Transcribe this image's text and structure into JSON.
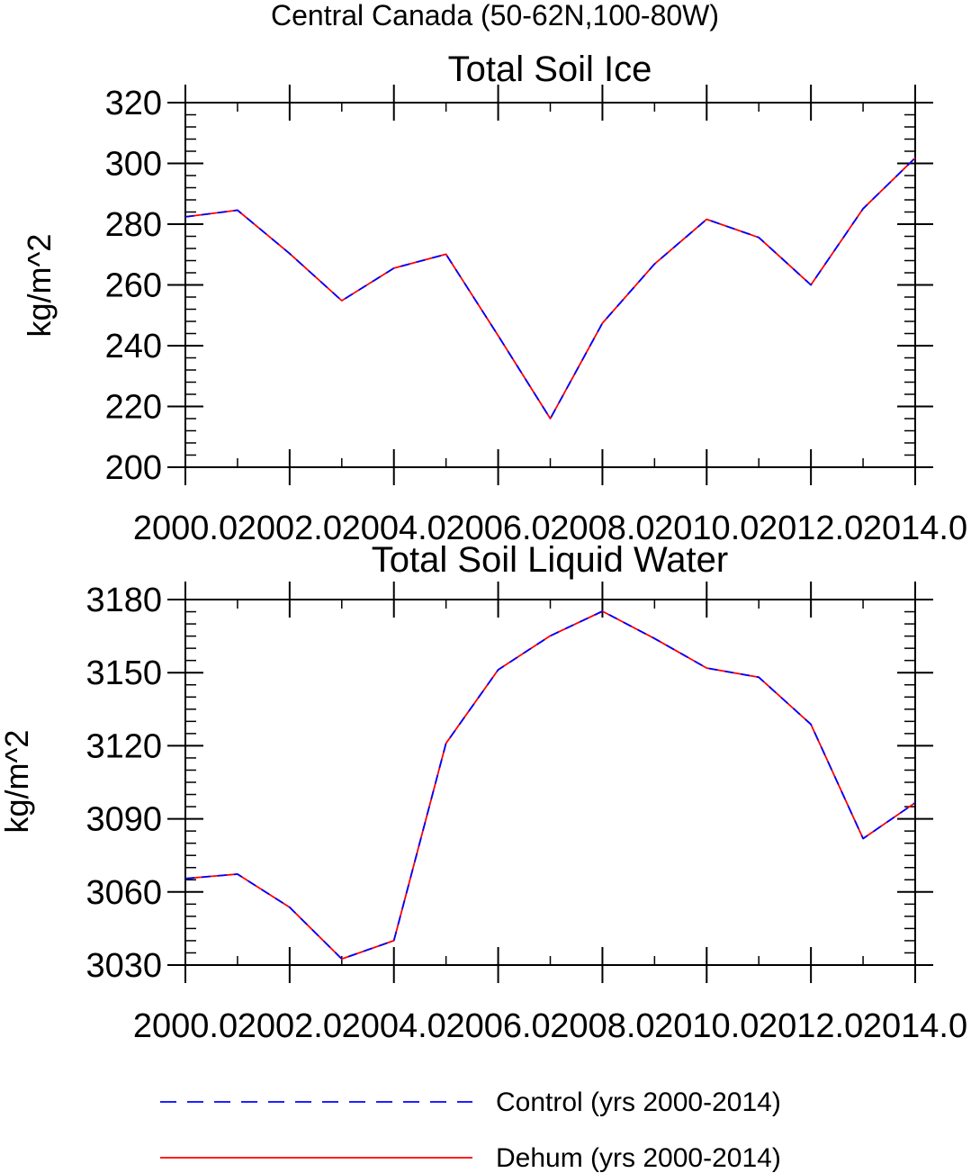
{
  "figure_title": "Central Canada (50-62N,100-80W)",
  "legend": [
    {
      "label": "Control (yrs 2000-2014)",
      "color": "#0000ff",
      "style": "dashed"
    },
    {
      "label": "Dehum (yrs 2000-2014)",
      "color": "#ff0000",
      "style": "solid"
    }
  ],
  "chart_data": [
    {
      "type": "line",
      "title": "Total Soil Ice",
      "ylabel": "kg/m^2",
      "xlabel": "",
      "xlim": [
        2000,
        2014
      ],
      "ylim": [
        200,
        320
      ],
      "xticks": [
        2000,
        2002,
        2004,
        2006,
        2008,
        2010,
        2012,
        2014
      ],
      "xtick_labels": [
        "2000.0",
        "2002.0",
        "2004.0",
        "2006.0",
        "2008.0",
        "2010.0",
        "2012.0",
        "2014.0"
      ],
      "yticks": [
        200,
        220,
        240,
        260,
        280,
        300,
        320
      ],
      "ytick_labels": [
        "200",
        "220",
        "240",
        "260",
        "280",
        "300",
        "320"
      ],
      "y_minor_step": 4,
      "x": [
        2000,
        2001,
        2002,
        2003,
        2004,
        2005,
        2006,
        2007,
        2008,
        2009,
        2010,
        2011,
        2012,
        2013,
        2014
      ],
      "series": [
        {
          "name": "Control (yrs 2000-2014)",
          "color": "#0000ff",
          "style": "dashed",
          "values": [
            282.4,
            284.6,
            270.3,
            254.8,
            265.5,
            270.1,
            243.3,
            216.0,
            247.4,
            266.9,
            281.6,
            275.6,
            260.0,
            285.1,
            301.8
          ]
        },
        {
          "name": "Dehum (yrs 2000-2014)",
          "color": "#ff0000",
          "style": "solid",
          "values": [
            282.4,
            284.6,
            270.3,
            254.8,
            265.5,
            270.1,
            243.3,
            216.0,
            247.4,
            266.9,
            281.6,
            275.6,
            260.0,
            285.1,
            301.8
          ]
        }
      ]
    },
    {
      "type": "line",
      "title": "Total Soil Liquid Water",
      "ylabel": "kg/m^2",
      "xlabel": "",
      "xlim": [
        2000,
        2014
      ],
      "ylim": [
        3030,
        3180
      ],
      "xticks": [
        2000,
        2002,
        2004,
        2006,
        2008,
        2010,
        2012,
        2014
      ],
      "xtick_labels": [
        "2000.0",
        "2002.0",
        "2004.0",
        "2006.0",
        "2008.0",
        "2010.0",
        "2012.0",
        "2014.0"
      ],
      "yticks": [
        3030,
        3060,
        3090,
        3120,
        3150,
        3180
      ],
      "ytick_labels": [
        "3030",
        "3060",
        "3090",
        "3120",
        "3150",
        "3180"
      ],
      "y_minor_step": 5,
      "x": [
        2000,
        2001,
        2002,
        2003,
        2004,
        2005,
        2006,
        2007,
        2008,
        2009,
        2010,
        2011,
        2012,
        2013,
        2014
      ],
      "series": [
        {
          "name": "Control (yrs 2000-2014)",
          "color": "#0000ff",
          "style": "dashed",
          "values": [
            3065.5,
            3067.3,
            3053.7,
            3032.5,
            3040.0,
            3121.0,
            3151.2,
            3165.1,
            3175.2,
            3164.0,
            3151.9,
            3148.1,
            3128.8,
            3081.9,
            3096.6
          ]
        },
        {
          "name": "Dehum (yrs 2000-2014)",
          "color": "#ff0000",
          "style": "solid",
          "values": [
            3065.5,
            3067.3,
            3053.7,
            3032.5,
            3040.0,
            3121.0,
            3151.2,
            3165.1,
            3175.2,
            3164.0,
            3151.9,
            3148.1,
            3128.8,
            3081.9,
            3096.6
          ]
        }
      ]
    }
  ]
}
